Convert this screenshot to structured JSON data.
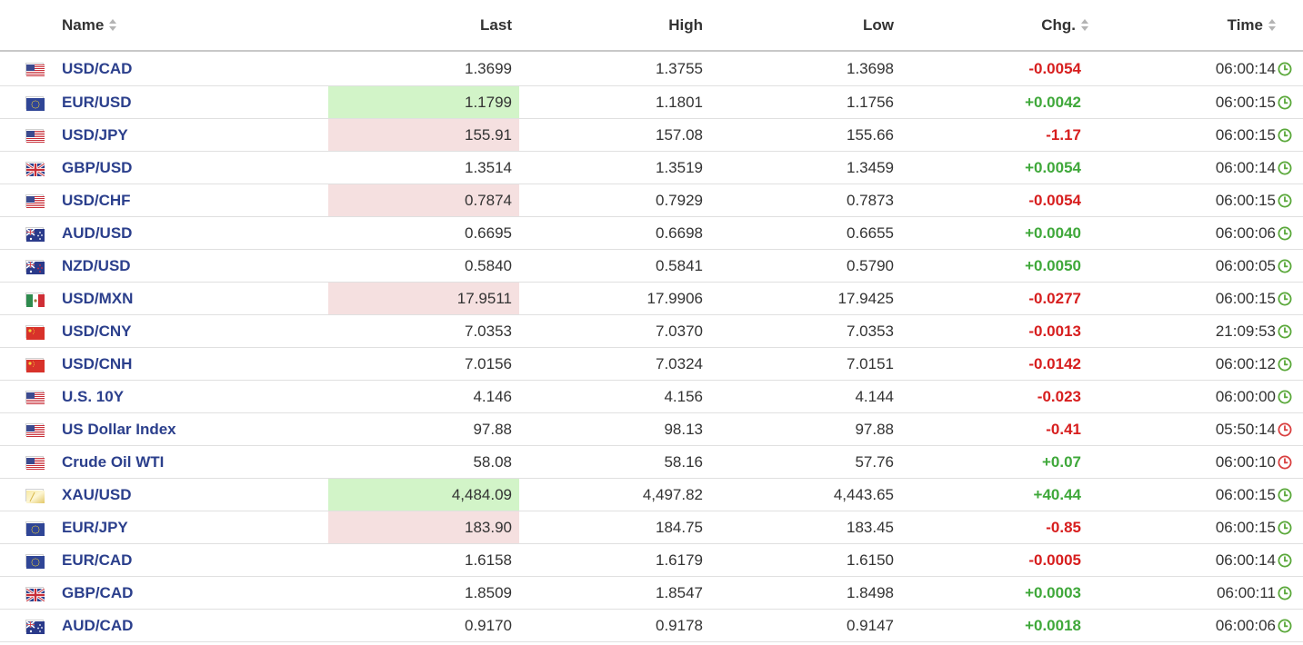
{
  "columns": {
    "name": "Name",
    "last": "Last",
    "high": "High",
    "low": "Low",
    "chg": "Chg.",
    "time": "Time"
  },
  "colors": {
    "up": "#3fa83a",
    "down": "#d71e1e",
    "link": "#2b3f8c",
    "highlight_up": "#d2f4c8",
    "highlight_down": "#f5e0e0"
  },
  "rows": [
    {
      "flag": "us-flag-icon",
      "name": "USD/CAD",
      "last": "1.3699",
      "high": "1.3755",
      "low": "1.3698",
      "chg": "-0.0054",
      "time": "06:00:14",
      "clock": "clock-green-icon"
    },
    {
      "flag": "eu-flag-icon",
      "name": "EUR/USD",
      "last": "1.1799",
      "high": "1.1801",
      "low": "1.1756",
      "chg": "+0.0042",
      "time": "06:00:15",
      "clock": "clock-green-icon"
    },
    {
      "flag": "us-flag-icon",
      "name": "USD/JPY",
      "last": "155.91",
      "high": "157.08",
      "low": "155.66",
      "chg": "-1.17",
      "time": "06:00:15",
      "clock": "clock-green-icon"
    },
    {
      "flag": "uk-flag-icon",
      "name": "GBP/USD",
      "last": "1.3514",
      "high": "1.3519",
      "low": "1.3459",
      "chg": "+0.0054",
      "time": "06:00:14",
      "clock": "clock-green-icon"
    },
    {
      "flag": "us-flag-icon",
      "name": "USD/CHF",
      "last": "0.7874",
      "high": "0.7929",
      "low": "0.7873",
      "chg": "-0.0054",
      "time": "06:00:15",
      "clock": "clock-green-icon"
    },
    {
      "flag": "au-flag-icon",
      "name": "AUD/USD",
      "last": "0.6695",
      "high": "0.6698",
      "low": "0.6655",
      "chg": "+0.0040",
      "time": "06:00:06",
      "clock": "clock-green-icon"
    },
    {
      "flag": "nz-flag-icon",
      "name": "NZD/USD",
      "last": "0.5840",
      "high": "0.5841",
      "low": "0.5790",
      "chg": "+0.0050",
      "time": "06:00:05",
      "clock": "clock-green-icon"
    },
    {
      "flag": "mx-flag-icon",
      "name": "USD/MXN",
      "last": "17.9511",
      "high": "17.9906",
      "low": "17.9425",
      "chg": "-0.0277",
      "time": "06:00:15",
      "clock": "clock-green-icon"
    },
    {
      "flag": "cn-flag-icon",
      "name": "USD/CNY",
      "last": "7.0353",
      "high": "7.0370",
      "low": "7.0353",
      "chg": "-0.0013",
      "time": "21:09:53",
      "clock": "clock-green-icon"
    },
    {
      "flag": "cn-flag-icon",
      "name": "USD/CNH",
      "last": "7.0156",
      "high": "7.0324",
      "low": "7.0151",
      "chg": "-0.0142",
      "time": "06:00:12",
      "clock": "clock-green-icon"
    },
    {
      "flag": "us-flag-icon",
      "name": "U.S. 10Y",
      "last": "4.146",
      "high": "4.156",
      "low": "4.144",
      "chg": "-0.023",
      "time": "06:00:00",
      "clock": "clock-green-icon"
    },
    {
      "flag": "us-flag-icon",
      "name": "US Dollar Index",
      "last": "97.88",
      "high": "98.13",
      "low": "97.88",
      "chg": "-0.41",
      "time": "05:50:14",
      "clock": "clock-red-icon"
    },
    {
      "flag": "us-flag-icon",
      "name": "Crude Oil WTI",
      "last": "58.08",
      "high": "58.16",
      "low": "57.76",
      "chg": "+0.07",
      "time": "06:00:10",
      "clock": "clock-red-icon"
    },
    {
      "flag": "gold-flag-icon",
      "name": "XAU/USD",
      "last": "4,484.09",
      "high": "4,497.82",
      "low": "4,443.65",
      "chg": "+40.44",
      "time": "06:00:15",
      "clock": "clock-green-icon"
    },
    {
      "flag": "eu-flag-icon",
      "name": "EUR/JPY",
      "last": "183.90",
      "high": "184.75",
      "low": "183.45",
      "chg": "-0.85",
      "time": "06:00:15",
      "clock": "clock-green-icon"
    },
    {
      "flag": "eu-flag-icon",
      "name": "EUR/CAD",
      "last": "1.6158",
      "high": "1.6179",
      "low": "1.6150",
      "chg": "-0.0005",
      "time": "06:00:14",
      "clock": "clock-green-icon"
    },
    {
      "flag": "uk-flag-icon",
      "name": "GBP/CAD",
      "last": "1.8509",
      "high": "1.8547",
      "low": "1.8498",
      "chg": "+0.0003",
      "time": "06:00:11",
      "clock": "clock-green-icon"
    },
    {
      "flag": "au-flag-icon",
      "name": "AUD/CAD",
      "last": "0.9170",
      "high": "0.9178",
      "low": "0.9147",
      "chg": "+0.0018",
      "time": "06:00:06",
      "clock": "clock-green-icon"
    }
  ],
  "highlights": {
    "EUR/USD": "up",
    "USD/JPY": "down",
    "USD/CHF": "down",
    "USD/MXN": "down",
    "XAU/USD": "up",
    "EUR/JPY": "down"
  }
}
